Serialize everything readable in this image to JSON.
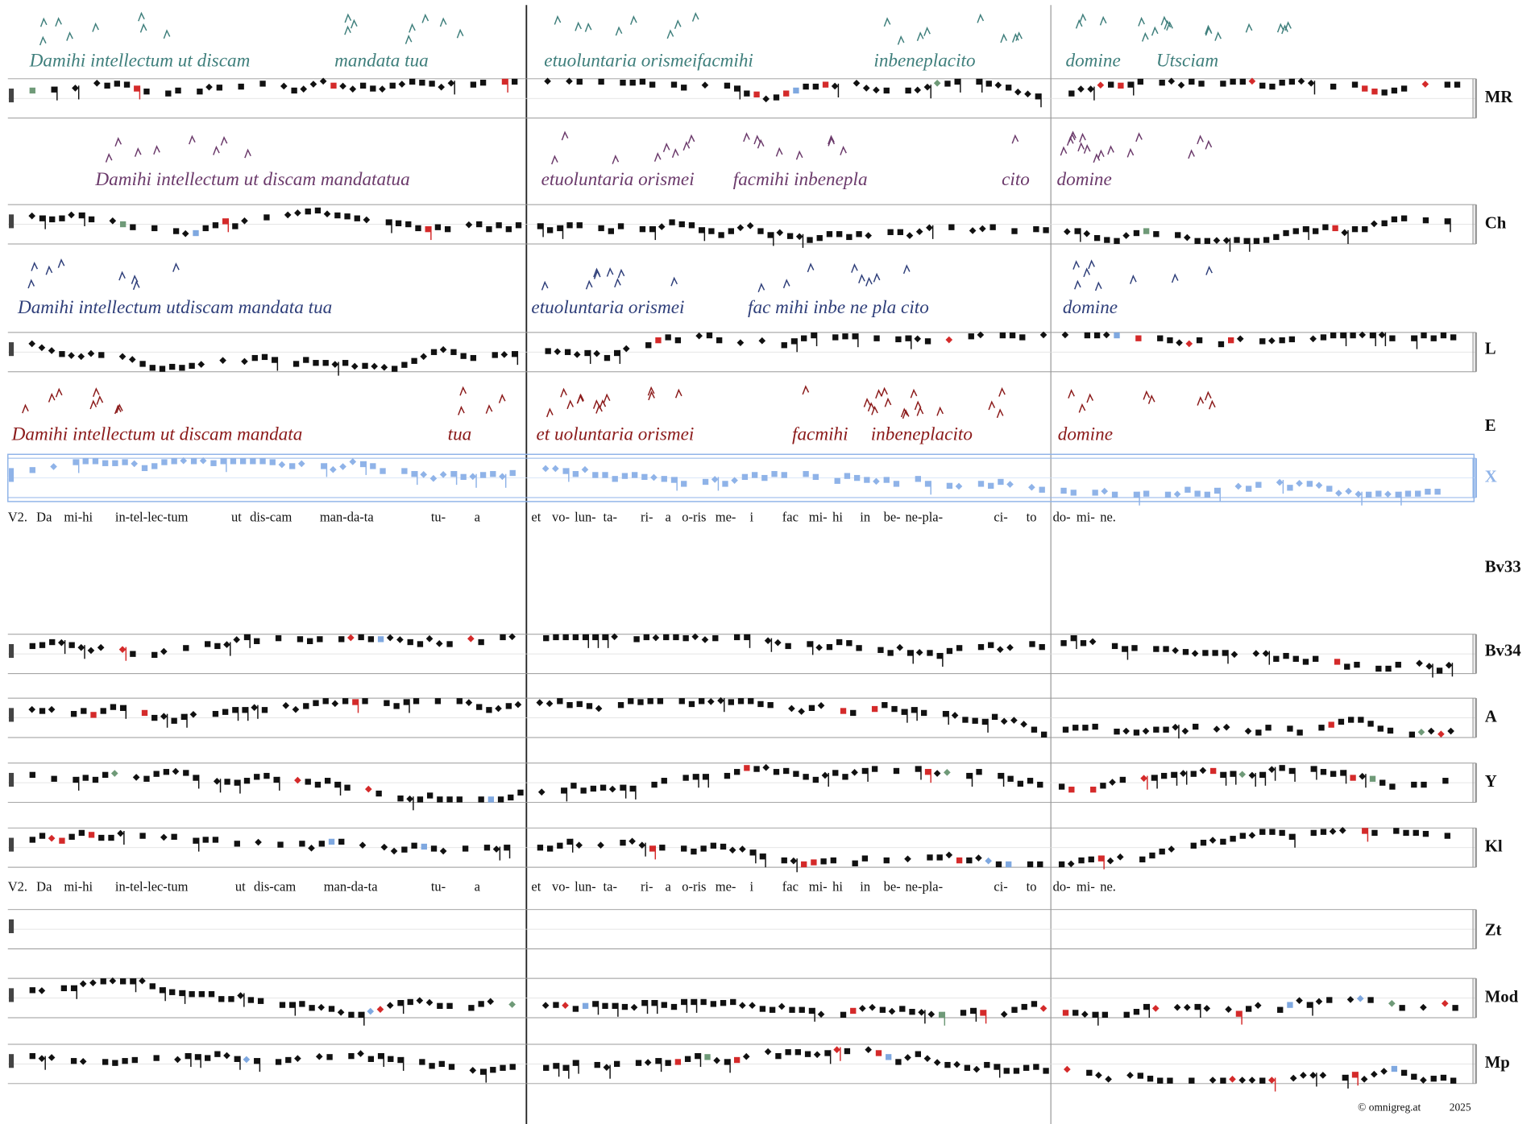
{
  "staves": [
    {
      "label": "MR"
    },
    {
      "label": "Ch"
    },
    {
      "label": "L"
    },
    {
      "label": "E"
    },
    {
      "label": "X"
    },
    {
      "label": "Bv33"
    },
    {
      "label": "Bv34"
    },
    {
      "label": "A"
    },
    {
      "label": "Y"
    },
    {
      "label": "Kl"
    },
    {
      "label": "Zt"
    },
    {
      "label": "Mod"
    },
    {
      "label": "Mp"
    }
  ],
  "neume_texts": [
    [
      "Damihi intellectum ut discam",
      "mandata tua",
      "etuoluntaria orismeifacmihi",
      "inbeneplacito",
      "domine",
      "Utsciam"
    ],
    [
      "Damihi intellectum ut discam mandatatua",
      "etuoluntaria orismei",
      "facmihi inbenepla",
      "cito",
      "domine"
    ],
    [
      "Damihi intellectum utdiscam mandata tua",
      "etuoluntaria orismei",
      "fac mihi inbe ne pla cito",
      "domine"
    ],
    [
      "Damihi intellectum ut discam mandata",
      "tua",
      "et uoluntaria orismei",
      "facmihi",
      "inbeneplacito",
      "domine"
    ]
  ],
  "lyrics": [
    [
      "V2.",
      "Da",
      "mi-hi",
      "in-tel-lec-tum",
      "ut",
      "dis-cam",
      "man-da-ta",
      "tu-",
      "a",
      "et",
      "vo-",
      "lun-",
      "ta-",
      "ri-",
      "a",
      "o-ris",
      "me-",
      "i",
      "fac",
      "mi-",
      "hi",
      "in",
      "be-",
      "ne-pla-",
      "ci-",
      "to",
      "do-",
      "mi-",
      "ne."
    ],
    [
      "V2.",
      "Da",
      "mi-hi",
      "in-tel-lec-tum",
      "ut",
      "dis-cam",
      "man-da-ta",
      "tu-",
      "a",
      "et",
      "vo-",
      "lun-",
      "ta-",
      "ri-",
      "a",
      "o-ris",
      "me-",
      "i",
      "fac",
      "mi-",
      "hi",
      "in",
      "be-",
      "ne-pla-",
      "ci-",
      "to",
      "do-",
      "mi-",
      "ne."
    ]
  ],
  "footer": {
    "site": "© omnigreg.at",
    "year": "2025"
  }
}
